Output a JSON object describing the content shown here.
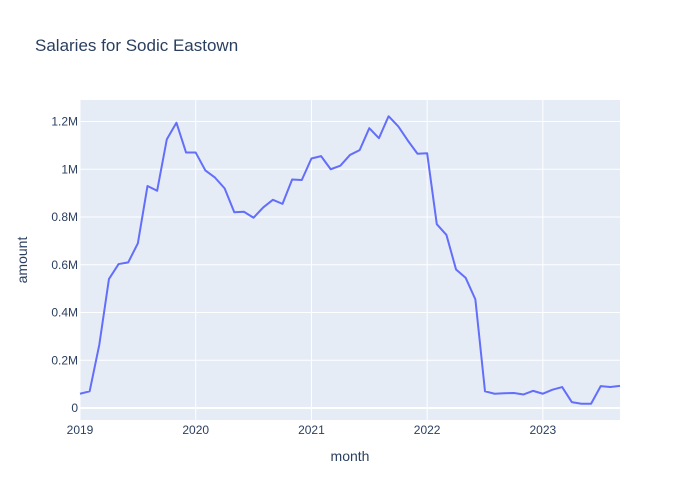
{
  "chart_data": {
    "type": "line",
    "title": "Salaries for Sodic Eastown",
    "xlabel": "month",
    "ylabel": "amount",
    "x_tick_labels": [
      "2019",
      "2020",
      "2021",
      "2022",
      "2023"
    ],
    "y_tick_labels": [
      "0",
      "0.2M",
      "0.4M",
      "0.6M",
      "0.8M",
      "1M",
      "1.2M"
    ],
    "y_tick_values": [
      0,
      200000,
      400000,
      600000,
      800000,
      1000000,
      1200000
    ],
    "x_range": [
      "2019-01",
      "2023-09"
    ],
    "ylim": [
      -50000,
      1290000
    ],
    "grid": true,
    "legend": "none",
    "colors": {
      "plot_background": "#e5ecf6",
      "grid": "#ffffff",
      "line": "#636efa",
      "text": "#2a3f5f"
    },
    "series": [
      {
        "x": [
          "2019-01",
          "2019-02",
          "2019-03",
          "2019-04",
          "2019-05",
          "2019-06",
          "2019-07",
          "2019-08",
          "2019-09",
          "2019-10",
          "2019-11",
          "2019-12",
          "2020-01",
          "2020-02",
          "2020-03",
          "2020-04",
          "2020-05",
          "2020-06",
          "2020-07",
          "2020-08",
          "2020-09",
          "2020-10",
          "2020-11",
          "2020-12",
          "2021-01",
          "2021-02",
          "2021-03",
          "2021-04",
          "2021-05",
          "2021-06",
          "2021-07",
          "2021-08",
          "2021-09",
          "2021-10",
          "2021-11",
          "2021-12",
          "2022-01",
          "2022-02",
          "2022-03",
          "2022-04",
          "2022-05",
          "2022-06",
          "2022-07",
          "2022-08",
          "2022-09",
          "2022-10",
          "2022-11",
          "2022-12",
          "2023-01",
          "2023-02",
          "2023-03",
          "2023-04",
          "2023-05",
          "2023-06",
          "2023-07",
          "2023-08",
          "2023-09"
        ],
        "values": [
          60000,
          70000,
          265000,
          540000,
          603000,
          610000,
          690000,
          930000,
          910000,
          1125000,
          1195000,
          1070000,
          1070000,
          995000,
          965000,
          920000,
          820000,
          822000,
          797000,
          840000,
          872000,
          855000,
          957000,
          955000,
          1045000,
          1055000,
          1000000,
          1015000,
          1060000,
          1080000,
          1172000,
          1130000,
          1222000,
          1180000,
          1120000,
          1065000,
          1067000,
          770000,
          725000,
          580000,
          545000,
          455000,
          70000,
          60000,
          62000,
          63000,
          57000,
          72000,
          60000,
          77000,
          88000,
          25000,
          18000,
          18000,
          92000,
          88000,
          93000
        ]
      }
    ]
  }
}
